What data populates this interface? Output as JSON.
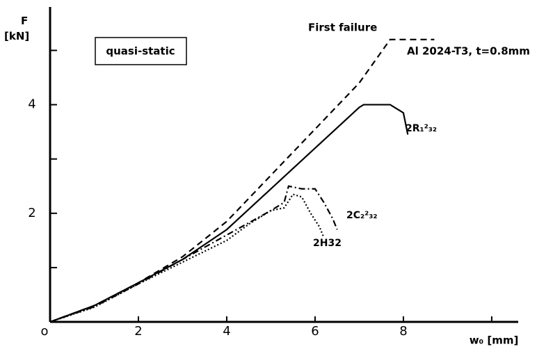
{
  "chart_data": {
    "type": "line",
    "title": "quasi-static",
    "y_label": "F [kN]",
    "x_label": "w₀ [mm]",
    "annotations": [
      "First failure",
      "Al 2024-T3, t=0.8mm"
    ],
    "xlim": [
      0,
      10.6
    ],
    "ylim": [
      0,
      5.8
    ],
    "xticks": [
      {
        "value": 0,
        "label": "o"
      },
      2,
      4,
      6,
      8
    ],
    "xminor": [
      10
    ],
    "yticks": [
      2,
      4
    ],
    "yminor": [
      1,
      3,
      5
    ],
    "series": [
      {
        "name": "Al 2024-T3, t=0.8mm",
        "color": "#000000",
        "dash": "dashed",
        "x": [
          0,
          1,
          2,
          3,
          4,
          5,
          6,
          7,
          7.7,
          8.7
        ],
        "values": [
          0,
          0.3,
          0.72,
          1.2,
          1.85,
          2.7,
          3.55,
          4.4,
          5.2,
          5.2
        ]
      },
      {
        "name": "2R₁²₃₂",
        "color": "#000000",
        "dash": "solid",
        "x": [
          0,
          1,
          2,
          3,
          4,
          5,
          6,
          7,
          7.1,
          7.7,
          8,
          8.1
        ],
        "values": [
          0,
          0.3,
          0.72,
          1.15,
          1.7,
          2.45,
          3.2,
          3.95,
          4.0,
          4.0,
          3.85,
          3.45
        ]
      },
      {
        "name": "2C₂²₃₂",
        "color": "#000000",
        "dash": "dashdot",
        "x": [
          0,
          1,
          2,
          3,
          4,
          5,
          5.3,
          5.4,
          5.7,
          6,
          6.2,
          6.4,
          6.5
        ],
        "values": [
          0,
          0.28,
          0.7,
          1.15,
          1.6,
          2.05,
          2.2,
          2.5,
          2.45,
          2.45,
          2.2,
          1.9,
          1.7
        ]
      },
      {
        "name": "2H32",
        "color": "#000000",
        "dash": "dotted",
        "x": [
          0,
          1,
          2,
          3,
          4,
          4.5,
          5,
          5.3,
          5.5,
          5.7,
          5.9,
          6.1,
          6.2
        ],
        "values": [
          0,
          0.27,
          0.7,
          1.1,
          1.5,
          1.8,
          2.05,
          2.1,
          2.35,
          2.3,
          2.0,
          1.75,
          1.55
        ]
      }
    ]
  }
}
